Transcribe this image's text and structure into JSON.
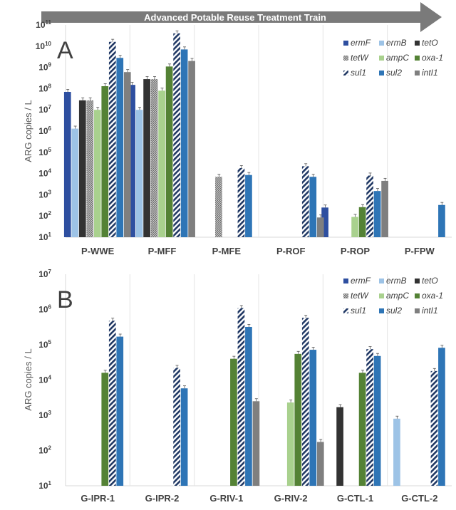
{
  "banner": {
    "text": "Advanced Potable Reuse Treatment Train"
  },
  "colors": {
    "ermF": "#2E4FA0",
    "ermB": "#9DC3E6",
    "tetO": "#333333",
    "tetW": "#A6A6A6",
    "ampC": "#A9D18E",
    "oxa-1": "#548235",
    "sul1": "#203864",
    "sul2": "#2E75B6",
    "intI1": "#7F7F7F"
  },
  "chart_data": [
    {
      "type": "bar",
      "panel": "A",
      "title": "",
      "xlabel": "",
      "ylabel": "ARG copies / L",
      "yscale": "log",
      "ylim": [
        10,
        100000000000
      ],
      "ytick_exponents": [
        1,
        2,
        3,
        4,
        5,
        6,
        7,
        8,
        9,
        10,
        11
      ],
      "grid": false,
      "legend_position": "top-right",
      "categories": [
        "P-WWE",
        "P-MFF",
        "P-MFE",
        "P-ROF",
        "P-ROP",
        "P-FPW"
      ],
      "series": [
        {
          "name": "ermF",
          "style": "solid",
          "values": [
            70000000,
            150000000,
            null,
            null,
            250,
            null
          ]
        },
        {
          "name": "ermB",
          "style": "solid",
          "values": [
            1300000,
            10000000,
            null,
            null,
            null,
            null
          ]
        },
        {
          "name": "tetO",
          "style": "solid",
          "values": [
            28000000,
            280000000,
            null,
            null,
            null,
            null
          ]
        },
        {
          "name": "tetW",
          "style": "dotted",
          "values": [
            28000000,
            280000000,
            7000,
            null,
            null,
            null
          ]
        },
        {
          "name": "ampC",
          "style": "solid",
          "values": [
            10000000,
            80000000,
            null,
            null,
            90,
            null
          ]
        },
        {
          "name": "oxa-1",
          "style": "solid",
          "values": [
            130000000,
            1100000000,
            null,
            null,
            260,
            null
          ]
        },
        {
          "name": "sul1",
          "style": "hatch",
          "values": [
            16000000000,
            40000000000,
            18000,
            22000,
            8000,
            null
          ]
        },
        {
          "name": "sul2",
          "style": "solid",
          "values": [
            2800000000,
            7000000000,
            8500,
            7000,
            1500,
            330
          ]
        },
        {
          "name": "intI1",
          "style": "solid",
          "values": [
            600000000,
            2000000000,
            null,
            85,
            4500,
            null
          ]
        }
      ]
    },
    {
      "type": "bar",
      "panel": "B",
      "title": "",
      "xlabel": "",
      "ylabel": "ARG copies / L",
      "yscale": "log",
      "ylim": [
        10,
        10000000
      ],
      "ytick_exponents": [
        1,
        2,
        3,
        4,
        5,
        6,
        7
      ],
      "grid": false,
      "legend_position": "top-right",
      "categories": [
        "G-IPR-1",
        "G-IPR-2",
        "G-RIV-1",
        "G-RIV-2",
        "G-CTL-1",
        "G-CTL-2"
      ],
      "series": [
        {
          "name": "ermF",
          "style": "solid",
          "values": [
            null,
            null,
            null,
            null,
            null,
            null
          ]
        },
        {
          "name": "ermB",
          "style": "solid",
          "values": [
            null,
            null,
            null,
            null,
            null,
            800
          ]
        },
        {
          "name": "tetO",
          "style": "solid",
          "values": [
            null,
            null,
            null,
            null,
            1700,
            null
          ]
        },
        {
          "name": "tetW",
          "style": "dotted",
          "values": [
            null,
            null,
            null,
            null,
            null,
            null
          ]
        },
        {
          "name": "ampC",
          "style": "solid",
          "values": [
            null,
            null,
            null,
            2300,
            null,
            null
          ]
        },
        {
          "name": "oxa-1",
          "style": "solid",
          "values": [
            16000,
            null,
            40000,
            55000,
            16000,
            null
          ]
        },
        {
          "name": "sul1",
          "style": "hatch",
          "values": [
            480000,
            22000,
            1100000,
            580000,
            75000,
            18000
          ]
        },
        {
          "name": "sul2",
          "style": "solid",
          "values": [
            170000,
            5800,
            320000,
            72000,
            48000,
            82000
          ]
        },
        {
          "name": "intI1",
          "style": "solid",
          "values": [
            null,
            null,
            2500,
            175,
            null,
            null
          ]
        }
      ]
    }
  ],
  "legend": [
    {
      "key": "ermF",
      "label": "ermF"
    },
    {
      "key": "ermB",
      "label": "ermB"
    },
    {
      "key": "tetO",
      "label": "tetO"
    },
    {
      "key": "tetW",
      "label": "tetW"
    },
    {
      "key": "ampC",
      "label": "ampC"
    },
    {
      "key": "oxa-1",
      "label": "oxa-1"
    },
    {
      "key": "sul1",
      "label": "sul1"
    },
    {
      "key": "sul2",
      "label": "sul2"
    },
    {
      "key": "intI1",
      "label": "intI1"
    }
  ]
}
